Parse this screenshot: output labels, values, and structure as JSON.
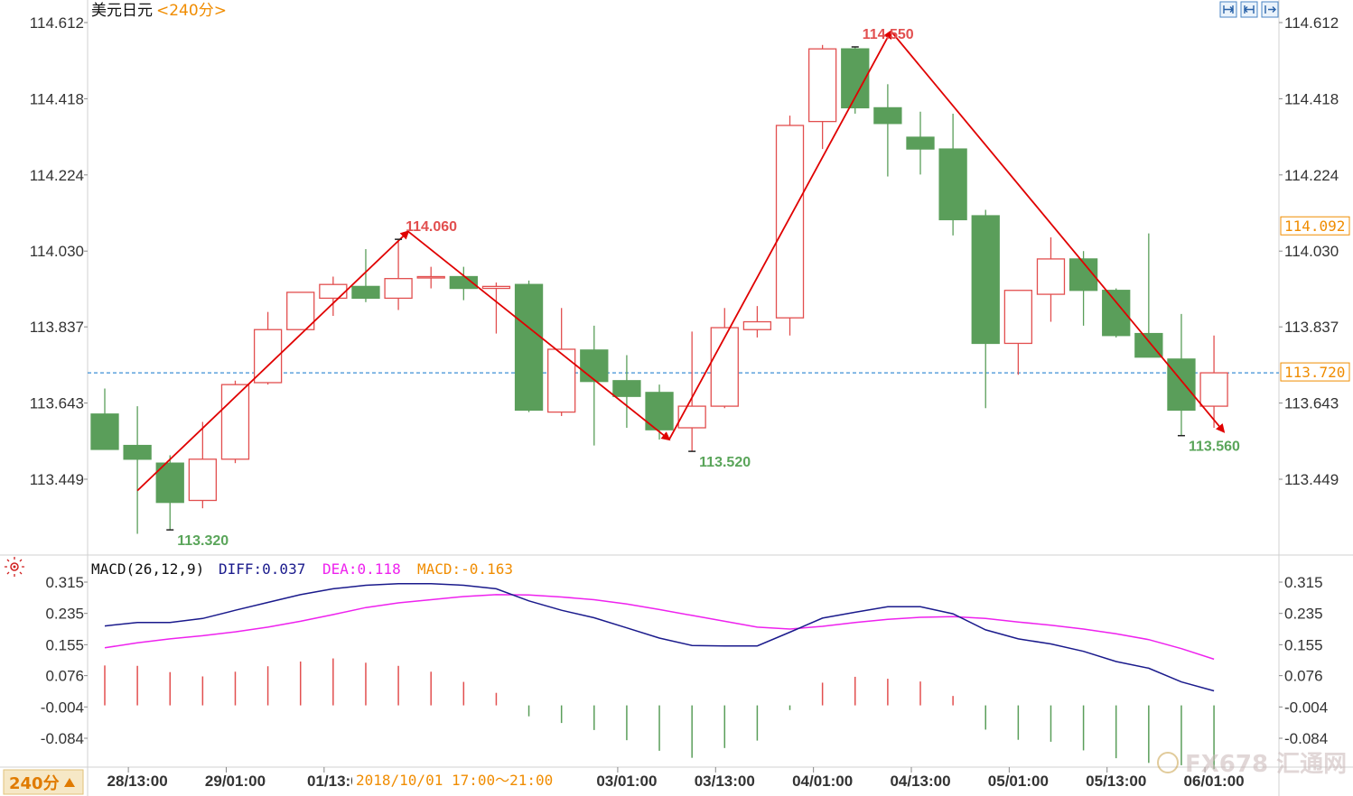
{
  "header": {
    "symbol": "美元日元",
    "period": "<240分>",
    "toolbar_icons": [
      "zoom-in-icon",
      "zoom-out-icon",
      "scroll-right-icon"
    ]
  },
  "chart_data": [
    {
      "type": "candlestick",
      "title": "美元日元",
      "period": "240分",
      "ylim": [
        113.31,
        114.64
      ],
      "y_ticks": [
        "114.612",
        "114.418",
        "114.224",
        "114.030",
        "113.837",
        "113.643",
        "113.449"
      ],
      "x_ticks": [
        "28/13:00",
        "29/01:00",
        "01/13:0",
        "03/01:00",
        "03/13:00",
        "04/01:00",
        "04/13:00",
        "05/01:00",
        "05/13:00",
        "06/01:00"
      ],
      "last_price": "114.092",
      "current_price": "113.720",
      "candles": [
        {
          "o": 113.615,
          "h": 113.68,
          "c": 113.525,
          "l": 113.525
        },
        {
          "o": 113.535,
          "h": 113.635,
          "c": 113.5,
          "l": 113.31
        },
        {
          "o": 113.49,
          "h": 113.51,
          "c": 113.39,
          "l": 113.32
        },
        {
          "o": 113.395,
          "h": 113.595,
          "c": 113.5,
          "l": 113.375
        },
        {
          "o": 113.5,
          "h": 113.7,
          "c": 113.69,
          "l": 113.49
        },
        {
          "o": 113.695,
          "h": 113.875,
          "c": 113.83,
          "l": 113.69
        },
        {
          "o": 113.83,
          "h": 113.92,
          "c": 113.925,
          "l": 113.83
        },
        {
          "o": 113.91,
          "h": 113.965,
          "c": 113.945,
          "l": 113.865
        },
        {
          "o": 113.94,
          "h": 114.035,
          "c": 113.91,
          "l": 113.9
        },
        {
          "o": 113.91,
          "h": 114.06,
          "c": 113.96,
          "l": 113.88
        },
        {
          "o": 113.965,
          "h": 113.99,
          "c": 113.965,
          "l": 113.935
        },
        {
          "o": 113.965,
          "h": 113.99,
          "c": 113.935,
          "l": 113.905
        },
        {
          "o": 113.935,
          "h": 113.95,
          "c": 113.94,
          "l": 113.82
        },
        {
          "o": 113.945,
          "h": 113.955,
          "c": 113.625,
          "l": 113.62
        },
        {
          "o": 113.62,
          "h": 113.885,
          "c": 113.78,
          "l": 113.61
        },
        {
          "o": 113.778,
          "h": 113.84,
          "c": 113.698,
          "l": 113.535
        },
        {
          "o": 113.7,
          "h": 113.765,
          "c": 113.66,
          "l": 113.58
        },
        {
          "o": 113.67,
          "h": 113.69,
          "c": 113.575,
          "l": 113.55
        },
        {
          "o": 113.58,
          "h": 113.825,
          "c": 113.635,
          "l": 113.52
        },
        {
          "o": 113.635,
          "h": 113.885,
          "c": 113.835,
          "l": 113.63
        },
        {
          "o": 113.83,
          "h": 113.89,
          "c": 113.85,
          "l": 113.81
        },
        {
          "o": 113.86,
          "h": 114.375,
          "c": 114.35,
          "l": 113.815
        },
        {
          "o": 114.36,
          "h": 114.555,
          "c": 114.545,
          "l": 114.29
        },
        {
          "o": 114.545,
          "h": 114.55,
          "c": 114.395,
          "l": 114.38
        },
        {
          "o": 114.395,
          "h": 114.455,
          "c": 114.355,
          "l": 114.22
        },
        {
          "o": 114.32,
          "h": 114.385,
          "c": 114.29,
          "l": 114.225
        },
        {
          "o": 114.29,
          "h": 114.38,
          "c": 114.11,
          "l": 114.07
        },
        {
          "o": 114.12,
          "h": 114.135,
          "c": 113.795,
          "l": 113.63
        },
        {
          "o": 113.795,
          "h": 113.93,
          "c": 113.93,
          "l": 113.715
        },
        {
          "o": 113.92,
          "h": 114.065,
          "c": 114.01,
          "l": 113.85
        },
        {
          "o": 114.01,
          "h": 114.03,
          "c": 113.93,
          "l": 113.84
        },
        {
          "o": 113.93,
          "h": 113.935,
          "c": 113.815,
          "l": 113.81
        },
        {
          "o": 113.82,
          "h": 114.075,
          "c": 113.76,
          "l": 113.76
        },
        {
          "o": 113.755,
          "h": 113.87,
          "c": 113.625,
          "l": 113.56
        },
        {
          "o": 113.635,
          "h": 113.815,
          "c": 113.72,
          "l": 113.58
        }
      ],
      "annotations": [
        {
          "text": "113.320",
          "kind": "low"
        },
        {
          "text": "114.060",
          "kind": "high"
        },
        {
          "text": "113.520",
          "kind": "low"
        },
        {
          "text": "114.550",
          "kind": "high"
        },
        {
          "text": "113.560",
          "kind": "low"
        }
      ],
      "trend_points": [
        {
          "i": 1,
          "price": 113.42
        },
        {
          "i": 9.3,
          "price": 114.08
        },
        {
          "i": 17.3,
          "price": 113.55
        },
        {
          "i": 24.1,
          "price": 114.59
        },
        {
          "i": 34.3,
          "price": 113.57
        }
      ]
    },
    {
      "type": "line",
      "title": "MACD(26,12,9)",
      "ylim": [
        -0.13,
        0.33
      ],
      "y_ticks": [
        "0.315",
        "0.235",
        "0.155",
        "0.076",
        "-0.004",
        "-0.084"
      ],
      "legend": {
        "diff": "DIFF:0.037",
        "dea": "DEA:0.118",
        "macd": "MACD:-0.163"
      },
      "series": [
        {
          "name": "DIFF",
          "values": [
            0.203,
            0.212,
            0.212,
            0.222,
            0.243,
            0.263,
            0.283,
            0.298,
            0.307,
            0.311,
            0.311,
            0.307,
            0.298,
            0.267,
            0.243,
            0.224,
            0.198,
            0.172,
            0.153,
            0.152,
            0.152,
            0.187,
            0.223,
            0.238,
            0.252,
            0.252,
            0.234,
            0.193,
            0.17,
            0.157,
            0.138,
            0.112,
            0.095,
            0.06,
            0.037
          ]
        },
        {
          "name": "DEA",
          "values": [
            0.147,
            0.16,
            0.17,
            0.178,
            0.188,
            0.2,
            0.215,
            0.232,
            0.25,
            0.262,
            0.27,
            0.278,
            0.283,
            0.282,
            0.277,
            0.27,
            0.259,
            0.245,
            0.23,
            0.215,
            0.2,
            0.195,
            0.202,
            0.212,
            0.22,
            0.225,
            0.227,
            0.222,
            0.213,
            0.205,
            0.195,
            0.183,
            0.168,
            0.145,
            0.118
          ]
        },
        {
          "name": "MACD",
          "values": [
            0.102,
            0.101,
            0.085,
            0.074,
            0.086,
            0.1,
            0.112,
            0.12,
            0.109,
            0.101,
            0.086,
            0.06,
            0.032,
            -0.028,
            -0.045,
            -0.063,
            -0.089,
            -0.116,
            -0.134,
            -0.109,
            -0.09,
            -0.012,
            0.058,
            0.073,
            0.068,
            0.061,
            0.024,
            -0.062,
            -0.088,
            -0.093,
            -0.115,
            -0.135,
            -0.147,
            -0.153,
            -0.163
          ]
        }
      ]
    }
  ],
  "footer": {
    "period_selector": "240分",
    "tooltip": "2018/10/01  17:00～21:00",
    "watermark": "FX678 汇通网"
  },
  "colors": {
    "up": "#e24f4f",
    "down": "#5a9e5a",
    "arrow": "#e00000",
    "diff": "#1a1a8c",
    "dea": "#ee22ee",
    "price_line": "#3c8fd6",
    "highlight": "#f08c00",
    "low_label": "#5aa55a"
  }
}
